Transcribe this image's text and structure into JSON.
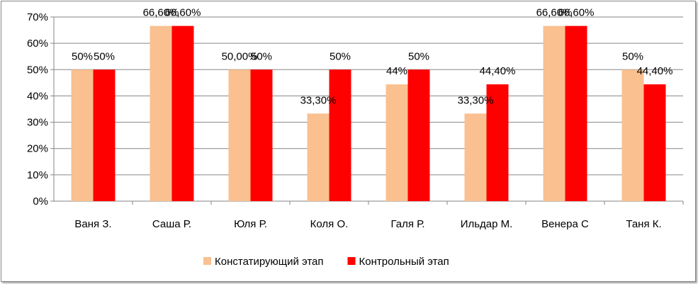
{
  "chart_data": {
    "type": "bar",
    "title": "",
    "xlabel": "",
    "ylabel": "",
    "ylim": [
      0,
      70
    ],
    "y_ticks": [
      "0%",
      "10%",
      "20%",
      "30%",
      "40%",
      "50%",
      "60%",
      "70%"
    ],
    "grid": true,
    "legend_position": "bottom",
    "categories": [
      "Ваня З.",
      "Саша Р.",
      "Юля Р.",
      "Коля О.",
      "Галя Р.",
      "Ильдар М.",
      "Венера С",
      "Таня К."
    ],
    "series": [
      {
        "name": "Констатирующий этап",
        "color": "#fac090",
        "values": [
          50,
          66.6,
          50,
          33.3,
          44.4,
          33.3,
          66.6,
          50
        ],
        "labels": [
          "50%",
          "66,60%",
          "50,00%",
          "33,30%",
          "44%",
          "33,30%",
          "66,60%",
          "50%"
        ]
      },
      {
        "name": "Контрольный этап",
        "color": "#ff0000",
        "values": [
          50,
          66.6,
          50,
          50,
          50,
          44.4,
          66.6,
          44.4
        ],
        "labels": [
          "50%",
          "66,60%",
          "50%",
          "50%",
          "50%",
          "44,40%",
          "66,60%",
          "44,40%"
        ]
      }
    ]
  }
}
